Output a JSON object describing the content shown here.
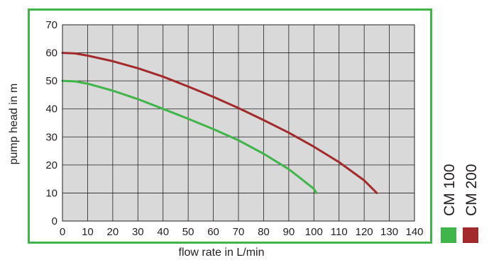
{
  "chart_data": {
    "type": "line",
    "title": "",
    "xlabel": "flow rate in L/min",
    "ylabel": "pump head in m",
    "xlim": [
      0,
      140
    ],
    "ylim": [
      0,
      70
    ],
    "x_ticks": [
      "0",
      "10",
      "20",
      "30",
      "40",
      "50",
      "60",
      "70",
      "80",
      "90",
      "100",
      "110",
      "120",
      "130",
      "140"
    ],
    "y_ticks": [
      "0",
      "10",
      "20",
      "30",
      "40",
      "50",
      "60",
      "70"
    ],
    "grid": true,
    "legend_position": "right",
    "series": [
      {
        "name": "CM 100",
        "color": "#3fb54a",
        "x": [
          0,
          5,
          10,
          20,
          30,
          40,
          50,
          60,
          70,
          80,
          90,
          95,
          100,
          101
        ],
        "y": [
          50,
          49.8,
          49,
          46.5,
          43.5,
          40,
          36.5,
          32.8,
          28.8,
          24,
          18.5,
          15,
          11.5,
          10
        ]
      },
      {
        "name": "CM 200",
        "color": "#a32a2b",
        "x": [
          0,
          5,
          10,
          20,
          30,
          40,
          50,
          60,
          70,
          80,
          90,
          100,
          110,
          120,
          125
        ],
        "y": [
          60,
          59.8,
          59,
          57,
          54.5,
          51.5,
          48,
          44.3,
          40.3,
          36,
          31.5,
          26.5,
          21,
          14.5,
          10
        ]
      }
    ]
  }
}
